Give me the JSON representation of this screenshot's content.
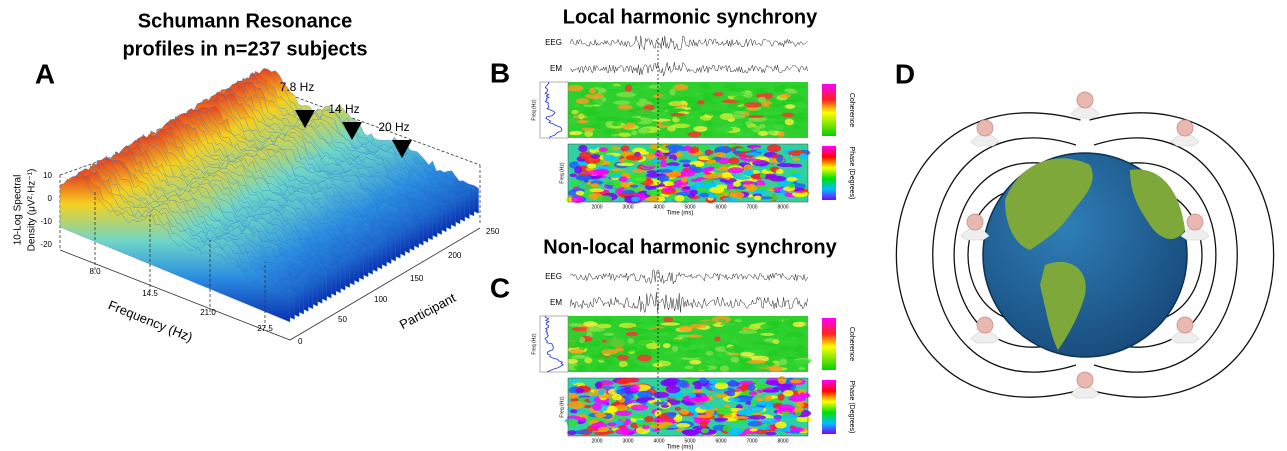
{
  "panels": {
    "a": {
      "label": "A",
      "title": [
        "Schumann Resonance",
        "profiles in n=237 subjects"
      ],
      "peaks": [
        "7.8 Hz",
        "14 Hz",
        "20 Hz"
      ],
      "y_axis": [
        "10-Log Spectral",
        "Density (μV²·Hz⁻¹)"
      ],
      "yticks": [
        "10",
        "0",
        "-10",
        "-20"
      ],
      "x_axis": "Frequency (Hz)",
      "xticks": [
        "8.0",
        "14.5",
        "21.0",
        "27.5"
      ],
      "z_axis": "Participant",
      "zticks": [
        "0",
        "50",
        "100",
        "150",
        "200",
        "250"
      ]
    },
    "b": {
      "label": "B",
      "title": "Local harmonic synchrony",
      "signals": [
        "EEG",
        "EM"
      ],
      "colorbars": [
        "Coherence",
        "Phase (Degrees)"
      ],
      "freq_label": "Freq (Hz)",
      "time_label": "Time (ms)",
      "time_ticks": [
        "2000",
        "3000",
        "4000",
        "5000",
        "6000",
        "7000",
        "8000"
      ]
    },
    "c": {
      "label": "C",
      "title": "Non-local harmonic synchrony",
      "signals": [
        "EEG",
        "EM"
      ],
      "colorbars": [
        "Coherence",
        "Phase (Degrees)"
      ],
      "freq_label": "Freq (Hz)",
      "time_label": "Time (ms)",
      "time_ticks": [
        "2000",
        "3000",
        "4000",
        "5000",
        "6000",
        "7000",
        "8000"
      ]
    },
    "d": {
      "label": "D"
    }
  }
}
